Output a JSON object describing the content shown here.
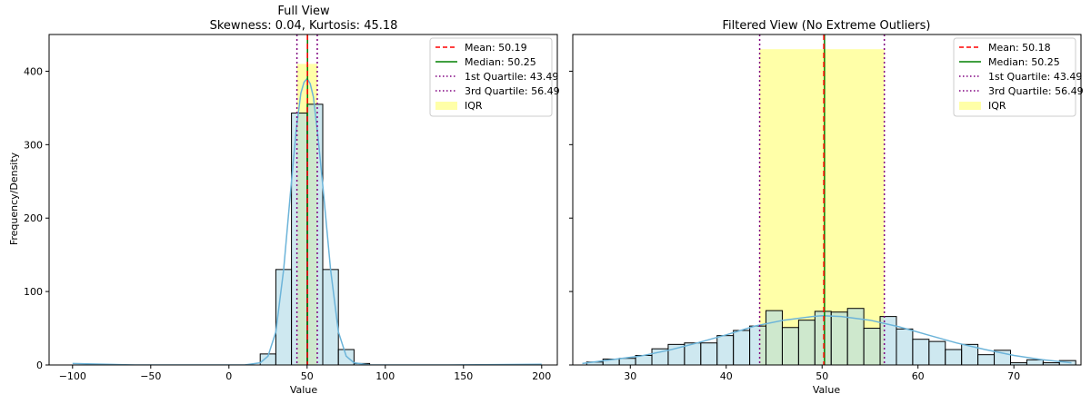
{
  "ylabel": "Frequency/Density",
  "chart_data": [
    {
      "type": "bar",
      "title": "Full View",
      "subtitle": "Skewness: 0.04, Kurtosis: 45.18",
      "xlabel": "Value",
      "xlim": [
        -115,
        210
      ],
      "ylim": [
        0,
        450
      ],
      "xticks": [
        -100,
        -50,
        0,
        50,
        100,
        150,
        200
      ],
      "yticks": [
        0,
        100,
        200,
        300,
        400
      ],
      "bins": [
        {
          "x0": 20,
          "x1": 30,
          "count": 15
        },
        {
          "x0": 30,
          "x1": 40,
          "count": 130
        },
        {
          "x0": 40,
          "x1": 50,
          "count": 343
        },
        {
          "x0": 50,
          "x1": 60,
          "count": 355
        },
        {
          "x0": 60,
          "x1": 70,
          "count": 130
        },
        {
          "x0": 70,
          "x1": 80,
          "count": 21
        },
        {
          "x0": 80,
          "x1": 90,
          "count": 2
        }
      ],
      "kde": {
        "x": [
          -100,
          -60,
          -20,
          0,
          10,
          20,
          25,
          30,
          35,
          40,
          43,
          46,
          48,
          50,
          52,
          54,
          57,
          60,
          65,
          70,
          75,
          80,
          90,
          100,
          140,
          200
        ],
        "y": [
          2,
          0,
          0,
          0,
          0,
          3,
          12,
          45,
          130,
          250,
          320,
          370,
          385,
          390,
          383,
          365,
          310,
          245,
          130,
          45,
          12,
          3,
          0,
          0,
          0,
          1
        ]
      },
      "iqr": {
        "x0": 43.49,
        "x1": 56.49,
        "height": 410
      },
      "mean": 50.19,
      "median": 50.25,
      "q1": 43.49,
      "q3": 56.49,
      "legend": {
        "position": "top-right",
        "items": [
          {
            "label": "Mean: 50.19",
            "style": "dashed",
            "color": "#ff0000"
          },
          {
            "label": "Median: 50.25",
            "style": "solid",
            "color": "#008000"
          },
          {
            "label": "1st Quartile: 43.49",
            "style": "dotted",
            "color": "#800080"
          },
          {
            "label": "3rd Quartile: 56.49",
            "style": "dotted",
            "color": "#800080"
          },
          {
            "label": "IQR",
            "style": "patch",
            "color": "#ffff99"
          }
        ]
      }
    },
    {
      "type": "bar",
      "title": "Filtered View (No Extreme Outliers)",
      "xlabel": "Value",
      "xlim": [
        24,
        77
      ],
      "ylim": [
        0,
        450
      ],
      "xticks": [
        30,
        40,
        50,
        60,
        70
      ],
      "yticks": [
        0,
        100,
        200,
        300,
        400
      ],
      "bins": [
        {
          "x0": 25.45,
          "x1": 27.15,
          "count": 4
        },
        {
          "x0": 27.15,
          "x1": 28.85,
          "count": 8
        },
        {
          "x0": 28.85,
          "x1": 30.55,
          "count": 9
        },
        {
          "x0": 30.55,
          "x1": 32.25,
          "count": 13
        },
        {
          "x0": 32.25,
          "x1": 33.95,
          "count": 22
        },
        {
          "x0": 33.95,
          "x1": 35.65,
          "count": 28
        },
        {
          "x0": 35.65,
          "x1": 37.35,
          "count": 30
        },
        {
          "x0": 37.35,
          "x1": 39.05,
          "count": 30
        },
        {
          "x0": 39.05,
          "x1": 40.75,
          "count": 40
        },
        {
          "x0": 40.75,
          "x1": 42.45,
          "count": 47
        },
        {
          "x0": 42.45,
          "x1": 44.15,
          "count": 53
        },
        {
          "x0": 44.15,
          "x1": 45.85,
          "count": 74
        },
        {
          "x0": 45.85,
          "x1": 47.55,
          "count": 51
        },
        {
          "x0": 47.55,
          "x1": 49.25,
          "count": 61
        },
        {
          "x0": 49.25,
          "x1": 50.95,
          "count": 73
        },
        {
          "x0": 50.95,
          "x1": 52.65,
          "count": 72
        },
        {
          "x0": 52.65,
          "x1": 54.35,
          "count": 77
        },
        {
          "x0": 54.35,
          "x1": 56.05,
          "count": 50
        },
        {
          "x0": 56.05,
          "x1": 57.75,
          "count": 66
        },
        {
          "x0": 57.75,
          "x1": 59.45,
          "count": 49
        },
        {
          "x0": 59.45,
          "x1": 61.15,
          "count": 35
        },
        {
          "x0": 61.15,
          "x1": 62.85,
          "count": 32
        },
        {
          "x0": 62.85,
          "x1": 64.55,
          "count": 21
        },
        {
          "x0": 64.55,
          "x1": 66.25,
          "count": 28
        },
        {
          "x0": 66.25,
          "x1": 67.95,
          "count": 14
        },
        {
          "x0": 67.95,
          "x1": 69.65,
          "count": 20
        },
        {
          "x0": 69.65,
          "x1": 71.35,
          "count": 3
        },
        {
          "x0": 71.35,
          "x1": 73.05,
          "count": 7
        },
        {
          "x0": 73.05,
          "x1": 74.75,
          "count": 3
        },
        {
          "x0": 74.75,
          "x1": 76.45,
          "count": 6
        }
      ],
      "kde": {
        "x": [
          25,
          28,
          31,
          34,
          37,
          40,
          43,
          46,
          49,
          50,
          52,
          55,
          58,
          61,
          64,
          67,
          70,
          73,
          76
        ],
        "y": [
          2,
          7,
          12,
          20,
          30,
          41,
          53,
          61,
          66,
          67,
          66,
          61,
          52,
          41,
          30,
          21,
          13,
          7,
          3
        ]
      },
      "iqr": {
        "x0": 43.49,
        "x1": 56.49,
        "height": 430
      },
      "mean": 50.18,
      "median": 50.25,
      "q1": 43.49,
      "q3": 56.49,
      "legend": {
        "position": "top-right",
        "items": [
          {
            "label": "Mean: 50.18",
            "style": "dashed",
            "color": "#ff0000"
          },
          {
            "label": "Median: 50.25",
            "style": "solid",
            "color": "#008000"
          },
          {
            "label": "1st Quartile: 43.49",
            "style": "dotted",
            "color": "#800080"
          },
          {
            "label": "3rd Quartile: 56.49",
            "style": "dotted",
            "color": "#800080"
          },
          {
            "label": "IQR",
            "style": "patch",
            "color": "#ffff99"
          }
        ]
      }
    }
  ],
  "colors": {
    "bar_fill": "#add8e6",
    "bar_stroke": "#000000",
    "kde": "#6cb4d9",
    "iqr_fill": "#ffff99"
  }
}
